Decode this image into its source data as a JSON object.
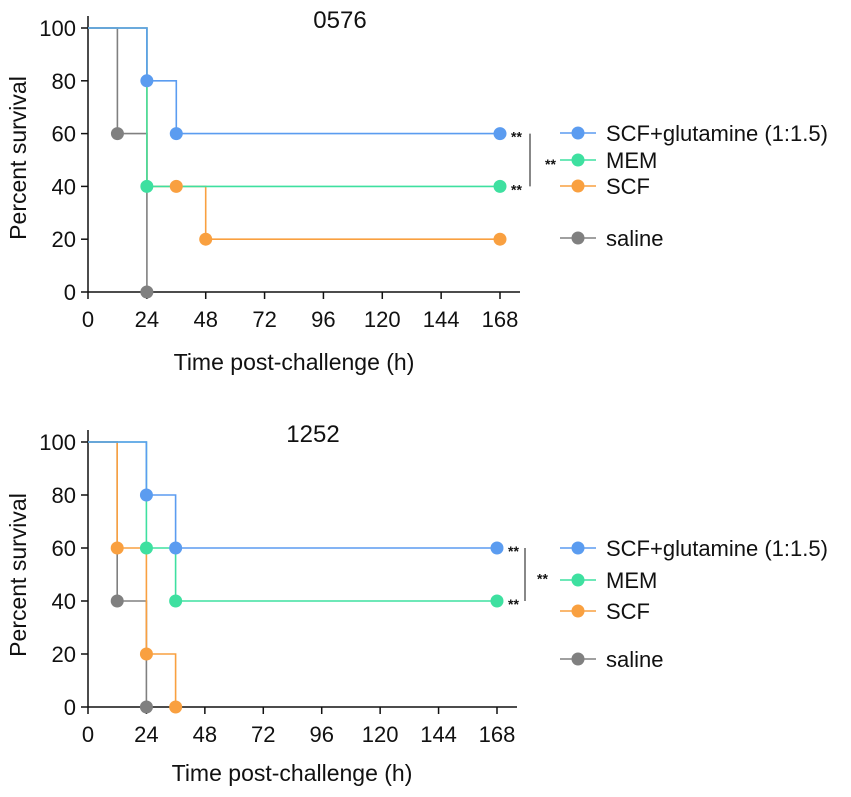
{
  "chart_data": [
    {
      "type": "line",
      "subtype": "kaplan-meier survival",
      "title": "0576",
      "xlabel": "Time post-challenge (h)",
      "ylabel": "Percent survival",
      "xticks": [
        0,
        24,
        48,
        72,
        96,
        120,
        144,
        168
      ],
      "yticks": [
        0,
        20,
        40,
        60,
        80,
        100
      ],
      "xlim": [
        0,
        168
      ],
      "ylim": [
        0,
        100
      ],
      "legend_position": "right",
      "series": [
        {
          "name": "SCF+glutamine (1:1.5)",
          "color": "#5b9cf0",
          "steps": [
            [
              0,
              100
            ],
            [
              24,
              100
            ],
            [
              24,
              80
            ],
            [
              36,
              80
            ],
            [
              36,
              60
            ],
            [
              168,
              60
            ]
          ],
          "points": [
            [
              24,
              80
            ],
            [
              36,
              60
            ],
            [
              168,
              60
            ]
          ],
          "sig": "**"
        },
        {
          "name": "MEM",
          "color": "#3ee0a0",
          "steps": [
            [
              0,
              100
            ],
            [
              24,
              100
            ],
            [
              24,
              40
            ],
            [
              168,
              40
            ]
          ],
          "points": [
            [
              24,
              40
            ],
            [
              168,
              40
            ]
          ],
          "sig": "**"
        },
        {
          "name": "SCF",
          "color": "#f9a040",
          "steps": [
            [
              0,
              100
            ],
            [
              24,
              100
            ],
            [
              24,
              40
            ],
            [
              48,
              40
            ],
            [
              48,
              20
            ],
            [
              168,
              20
            ]
          ],
          "points": [
            [
              36,
              40
            ],
            [
              48,
              20
            ],
            [
              168,
              20
            ]
          ],
          "sig": ""
        },
        {
          "name": "saline",
          "color": "#808080",
          "steps": [
            [
              0,
              100
            ],
            [
              12,
              100
            ],
            [
              12,
              60
            ],
            [
              24,
              60
            ],
            [
              24,
              0
            ]
          ],
          "points": [
            [
              12,
              60
            ],
            [
              24,
              0
            ]
          ],
          "sig": ""
        }
      ],
      "bracket_label": "**"
    },
    {
      "type": "line",
      "subtype": "kaplan-meier survival",
      "title": "1252",
      "xlabel": "Time post-challenge (h)",
      "ylabel": "Percent survival",
      "xticks": [
        0,
        24,
        48,
        72,
        96,
        120,
        144,
        168
      ],
      "yticks": [
        0,
        20,
        40,
        60,
        80,
        100
      ],
      "xlim": [
        0,
        168
      ],
      "ylim": [
        0,
        100
      ],
      "legend_position": "right",
      "series": [
        {
          "name": "SCF+glutamine (1:1.5)",
          "color": "#5b9cf0",
          "steps": [
            [
              0,
              100
            ],
            [
              24,
              100
            ],
            [
              24,
              80
            ],
            [
              36,
              80
            ],
            [
              36,
              60
            ],
            [
              168,
              60
            ]
          ],
          "points": [
            [
              24,
              80
            ],
            [
              36,
              60
            ],
            [
              168,
              60
            ]
          ],
          "sig": "**"
        },
        {
          "name": "MEM",
          "color": "#3ee0a0",
          "steps": [
            [
              0,
              100
            ],
            [
              24,
              100
            ],
            [
              24,
              60
            ],
            [
              36,
              60
            ],
            [
              36,
              40
            ],
            [
              168,
              40
            ]
          ],
          "points": [
            [
              24,
              60
            ],
            [
              36,
              40
            ],
            [
              168,
              40
            ]
          ],
          "sig": "**"
        },
        {
          "name": "SCF",
          "color": "#f9a040",
          "steps": [
            [
              0,
              100
            ],
            [
              12,
              100
            ],
            [
              12,
              60
            ],
            [
              24,
              60
            ],
            [
              24,
              20
            ],
            [
              36,
              20
            ],
            [
              36,
              0
            ]
          ],
          "points": [
            [
              12,
              60
            ],
            [
              24,
              20
            ],
            [
              36,
              0
            ]
          ],
          "sig": ""
        },
        {
          "name": "saline",
          "color": "#808080",
          "steps": [
            [
              0,
              100
            ],
            [
              12,
              100
            ],
            [
              12,
              40
            ],
            [
              24,
              40
            ],
            [
              24,
              0
            ]
          ],
          "points": [
            [
              12,
              40
            ],
            [
              24,
              0
            ]
          ],
          "sig": ""
        }
      ],
      "bracket_label": "**"
    }
  ]
}
